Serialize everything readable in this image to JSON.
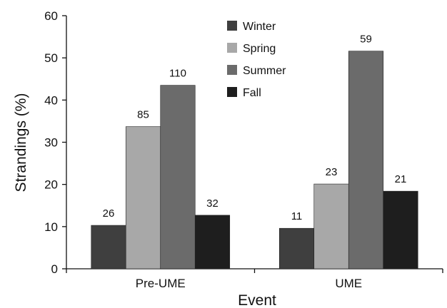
{
  "chart_data": {
    "type": "bar",
    "categories": [
      "Pre-UME",
      "UME"
    ],
    "series": [
      {
        "name": "Winter",
        "color": "#3f3f3f",
        "values": [
          10.3,
          9.6
        ],
        "labels": [
          "26",
          "11"
        ]
      },
      {
        "name": "Spring",
        "color": "#a8a8a8",
        "values": [
          33.7,
          20.1
        ],
        "labels": [
          "85",
          "23"
        ]
      },
      {
        "name": "Summer",
        "color": "#6b6b6b",
        "values": [
          43.5,
          51.6
        ],
        "labels": [
          "110",
          "59"
        ]
      },
      {
        "name": "Fall",
        "color": "#1e1e1e",
        "values": [
          12.7,
          18.4
        ],
        "labels": [
          "32",
          "21"
        ]
      }
    ],
    "xlabel": "Event",
    "ylabel": "Strandings (%)",
    "ylim": [
      0,
      60
    ],
    "yticks": [
      0,
      10,
      20,
      30,
      40,
      50,
      60
    ],
    "grid": false,
    "legend_position": "top-center"
  }
}
